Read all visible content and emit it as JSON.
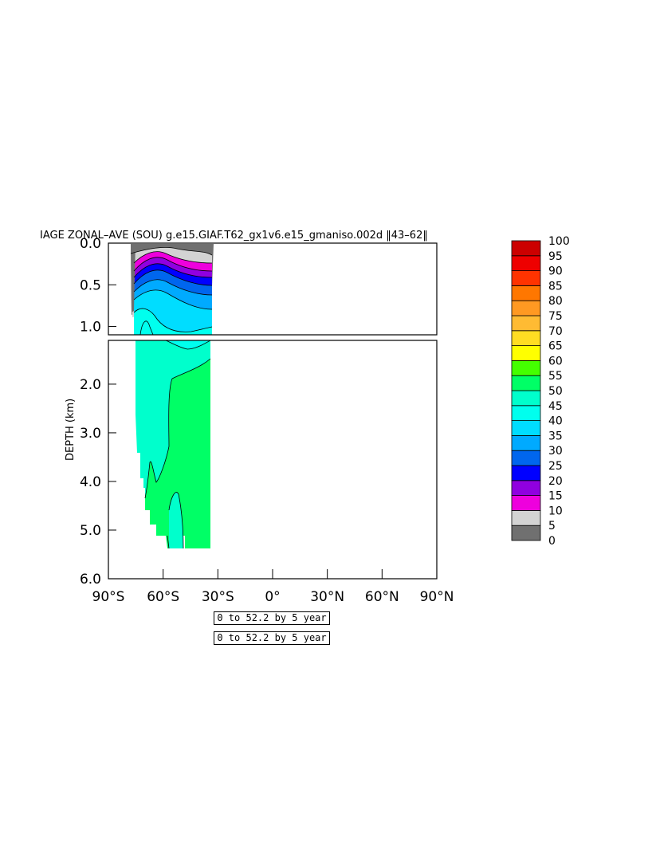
{
  "chart_data": {
    "type": "heatmap",
    "title": "IAGE ZONAL–AVE (SOU) g.e15.GIAF.T62_gx1v6.e15_gmaniso.002d ‖43–62‖",
    "ylabel": "DEPTH (km)",
    "xlabel": "",
    "x_tick_labels": [
      "90°S",
      "60°S",
      "30°S",
      "0°",
      "30°N",
      "60°N",
      "90°N"
    ],
    "x_ticks": [
      -90,
      -60,
      -30,
      0,
      30,
      60,
      90
    ],
    "y_ticks_upper": [
      0.0,
      0.5,
      1.0
    ],
    "y_tick_labels_upper": [
      "0.0",
      "0.5",
      "1.0"
    ],
    "y_ticks_lower": [
      2.0,
      3.0,
      4.0,
      5.0,
      6.0
    ],
    "y_tick_labels_lower": [
      "2.0",
      "3.0",
      "4.0",
      "5.0",
      "6.0"
    ],
    "xlim": [
      -90,
      90
    ],
    "ylim_upper": [
      0,
      1.1
    ],
    "ylim_lower": [
      1.1,
      6.0
    ],
    "colorbar": {
      "levels": [
        "0",
        "5",
        "10",
        "15",
        "20",
        "25",
        "30",
        "35",
        "40",
        "45",
        "50",
        "55",
        "60",
        "65",
        "70",
        "75",
        "80",
        "85",
        "90",
        "95",
        "100"
      ],
      "colors": [
        "#707070",
        "#d3d3d3",
        "#ee00dd",
        "#9000e0",
        "#0000ff",
        "#0066ee",
        "#00aaff",
        "#00ddff",
        "#00ffee",
        "#00ffcc",
        "#00ff66",
        "#44ff00",
        "#ffff00",
        "#ffdd22",
        "#ffbb33",
        "#ff9922",
        "#ff7700",
        "#ff3300",
        "#ee0000",
        "#cc0000"
      ]
    },
    "footer_labels": [
      "0 to 52.2 by 5 year",
      "0 to 52.2 by 5 year"
    ],
    "grid": false,
    "data_extent_lat": [
      -76,
      -33
    ]
  }
}
